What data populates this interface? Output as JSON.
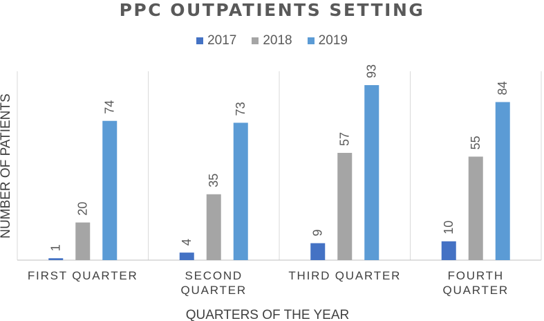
{
  "chart_data": {
    "type": "bar",
    "title": "PPC OUTPATIENTS SETTING",
    "xlabel": "QUARTERS OF THE YEAR",
    "ylabel": "NUMBER OF PATIENTS",
    "categories": [
      [
        "FIRST QUARTER"
      ],
      [
        "SECOND",
        "QUARTER"
      ],
      [
        "THIRD QUARTER"
      ],
      [
        "FOURTH",
        "QUARTER"
      ]
    ],
    "series": [
      {
        "name": "2017",
        "color": "#4472C4",
        "values": [
          1,
          4,
          9,
          10
        ]
      },
      {
        "name": "2018",
        "color": "#A5A5A5",
        "values": [
          20,
          35,
          57,
          55
        ]
      },
      {
        "name": "2019",
        "color": "#5B9BD5",
        "values": [
          74,
          73,
          93,
          84
        ]
      }
    ],
    "ylim": [
      0,
      100
    ],
    "legend_position": "top",
    "grid": "vertical-separators"
  }
}
